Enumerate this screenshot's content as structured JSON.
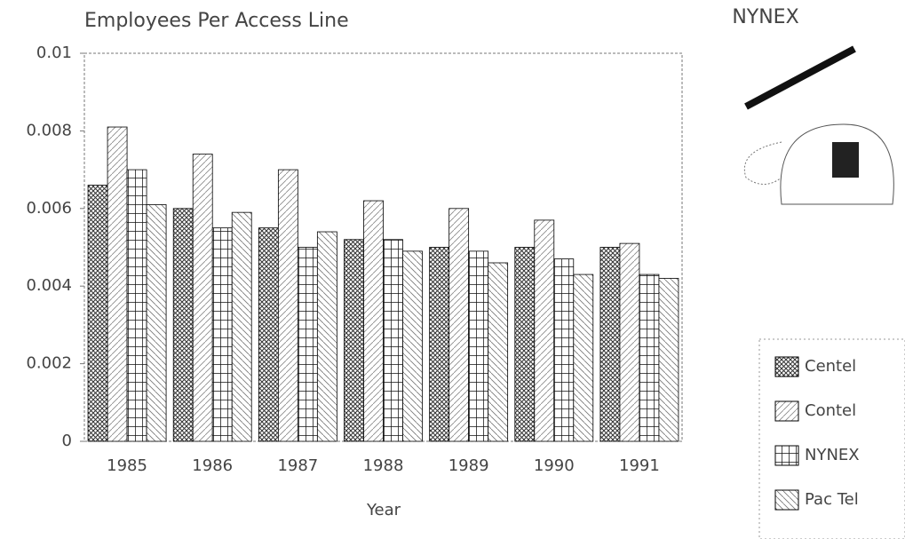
{
  "chart_data": {
    "type": "bar",
    "title": "Employees Per Access Line",
    "logo": "NYNEX",
    "xlabel": "Year",
    "categories": [
      "1985",
      "1986",
      "1987",
      "1988",
      "1989",
      "1990",
      "1991"
    ],
    "series": [
      {
        "name": "Centel",
        "color": "#000000",
        "values": [
          0.0066,
          0.006,
          0.0055,
          0.0052,
          0.005,
          0.005,
          0.005
        ]
      },
      {
        "name": "Contel",
        "color": "#000000",
        "values": [
          0.0081,
          0.0074,
          0.007,
          0.0062,
          0.006,
          0.0057,
          0.0051
        ]
      },
      {
        "name": "NYNEX",
        "color": "#000000",
        "values": [
          0.007,
          0.0055,
          0.005,
          0.0052,
          0.0049,
          0.0047,
          0.0043
        ]
      },
      {
        "name": "Pac Tel",
        "color": "#000000",
        "values": [
          0.0061,
          0.0059,
          0.0054,
          0.0049,
          0.0046,
          0.0043,
          0.0042
        ]
      }
    ],
    "ylim": [
      0,
      0.01
    ],
    "yticks": [
      0,
      0.002,
      0.004,
      0.006,
      0.008,
      0.01
    ],
    "grid": false,
    "legend": "right"
  }
}
